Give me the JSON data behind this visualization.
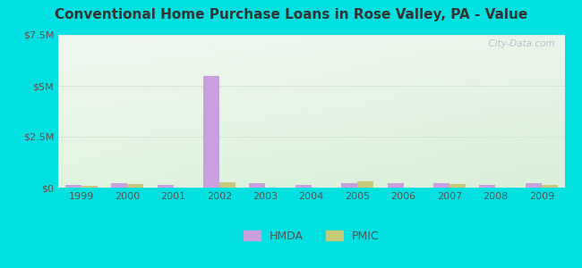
{
  "title": "Conventional Home Purchase Loans in Rose Valley, PA - Value",
  "years": [
    1999,
    2000,
    2001,
    2002,
    2003,
    2004,
    2005,
    2006,
    2007,
    2008,
    2009
  ],
  "hmda_values": [
    150000,
    200000,
    150000,
    5500000,
    200000,
    150000,
    200000,
    200000,
    200000,
    150000,
    200000
  ],
  "pmic_values": [
    80000,
    180000,
    0,
    280000,
    0,
    0,
    300000,
    0,
    180000,
    0,
    130000
  ],
  "hmda_color": "#c9a0dc",
  "pmic_color": "#c8c87a",
  "ylim": [
    0,
    7500000
  ],
  "yticks": [
    0,
    2500000,
    5000000,
    7500000
  ],
  "ytick_labels": [
    "$0",
    "$2.5M",
    "$5M",
    "$7.5M"
  ],
  "background_outer": "#00e0e0",
  "bar_width": 0.35,
  "watermark": "  City-Data.com",
  "grid_color": "#d8e8d8",
  "title_color": "#333333",
  "tick_color": "#555555"
}
